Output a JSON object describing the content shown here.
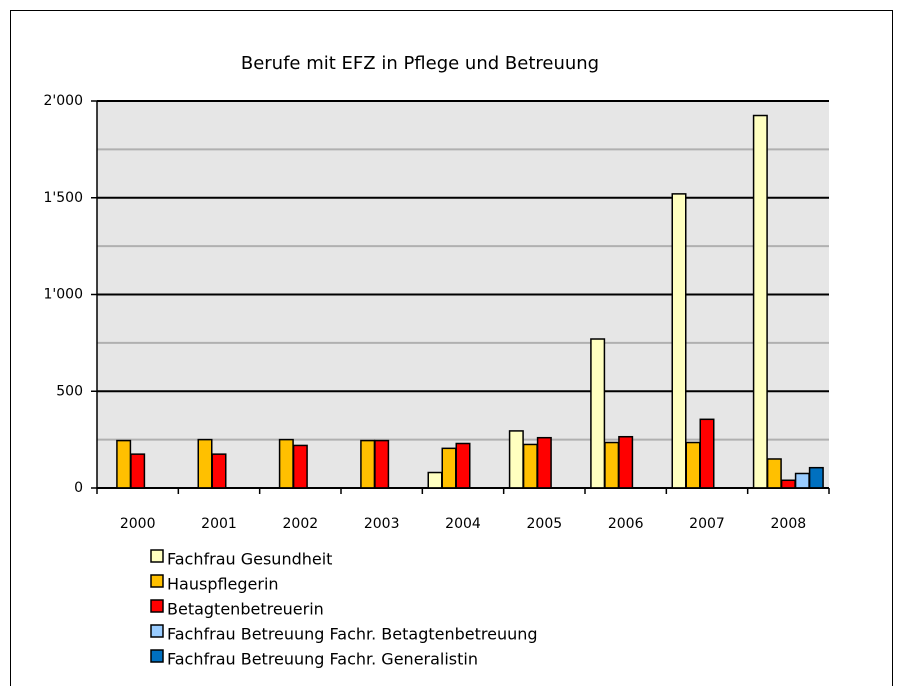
{
  "chart_data": {
    "type": "bar",
    "title": "Berufe mit EFZ in Pflege und Betreuung",
    "categories": [
      "2000",
      "2001",
      "2002",
      "2003",
      "2004",
      "2005",
      "2006",
      "2007",
      "2008"
    ],
    "series": [
      {
        "name": "Fachfrau Gesundheit",
        "color": "#ffffc0",
        "values": [
          null,
          null,
          null,
          null,
          80,
          295,
          770,
          1520,
          1925
        ]
      },
      {
        "name": "Hauspflegerin",
        "color": "#ffc000",
        "values": [
          245,
          250,
          250,
          245,
          205,
          225,
          235,
          235,
          150
        ]
      },
      {
        "name": "Betagtenbetreuerin",
        "color": "#ff0000",
        "values": [
          175,
          175,
          220,
          245,
          230,
          260,
          265,
          355,
          40
        ]
      },
      {
        "name": "Fachfrau Betreuung Fachr. Betagtenbetreuung",
        "color": "#99ccff",
        "values": [
          null,
          null,
          null,
          null,
          null,
          null,
          null,
          null,
          75
        ]
      },
      {
        "name": "Fachfrau Betreuung Fachr. Generalistin",
        "color": "#0070c0",
        "values": [
          null,
          null,
          null,
          null,
          null,
          null,
          null,
          null,
          105
        ]
      }
    ],
    "ylim": [
      0,
      2000
    ],
    "yticks": [
      0,
      500,
      {
        "value": 1000,
        "label": "1'000"
      },
      {
        "value": 1500,
        "label": "1'500"
      },
      {
        "value": 2000,
        "label": "2'000"
      }
    ],
    "yticks_minor": [
      250,
      750,
      1250,
      1750
    ],
    "grid": true,
    "plot_background": "#e6e6e6"
  }
}
